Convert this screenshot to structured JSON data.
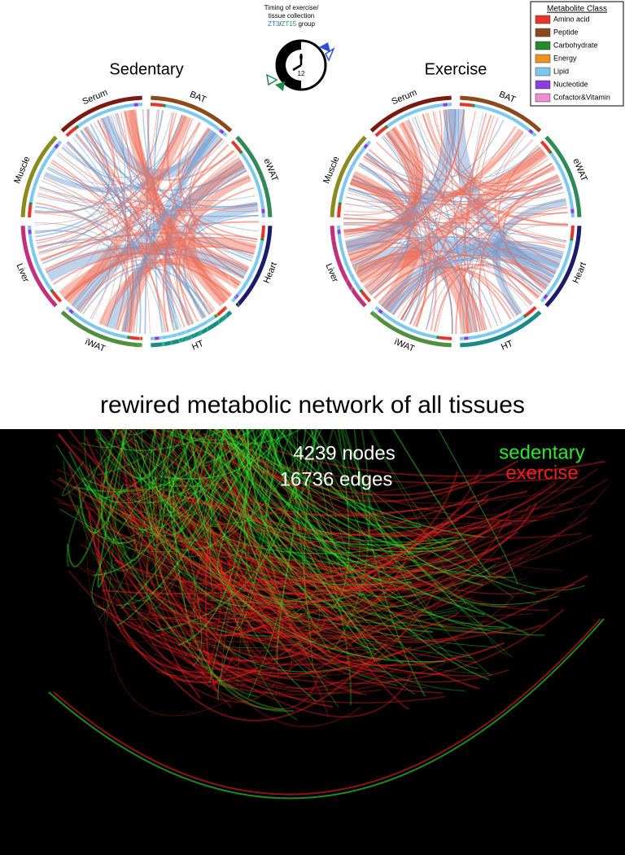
{
  "timing": {
    "line1": "Timing of exercise/",
    "line2": "tissue collection",
    "zt3": "ZT3",
    "sep": "/",
    "zt15": "ZT15",
    "group": "group",
    "clock_top": "0",
    "clock_bottom": "12"
  },
  "panels": [
    {
      "title": "Sedentary",
      "tissues": [
        {
          "label": "Serum",
          "color": "#7a1a14"
        },
        {
          "label": "BAT",
          "color": "#8b4a1c"
        },
        {
          "label": "eWAT",
          "color": "#2e8b57"
        },
        {
          "label": "Heart",
          "color": "#1c1c6a"
        },
        {
          "label": "HT",
          "color": "#1a8a88"
        },
        {
          "label": "iWAT",
          "color": "#4f8f3f"
        },
        {
          "label": "Liver",
          "color": "#c2307c"
        },
        {
          "label": "Muscle",
          "color": "#8a8a1e"
        }
      ]
    },
    {
      "title": "Exercise",
      "tissues": [
        {
          "label": "Serum",
          "color": "#7a1a14"
        },
        {
          "label": "BAT",
          "color": "#8b4a1c"
        },
        {
          "label": "eWAT",
          "color": "#2e8b57"
        },
        {
          "label": "Heart",
          "color": "#1c1c6a"
        },
        {
          "label": "HT",
          "color": "#1a8a88"
        },
        {
          "label": "iWAT",
          "color": "#4f8f3f"
        },
        {
          "label": "Liver",
          "color": "#c2307c"
        },
        {
          "label": "Muscle",
          "color": "#8a8a1e"
        }
      ]
    }
  ],
  "legend": {
    "title": "Metabolite Class",
    "items": [
      {
        "label": "Amino acid",
        "color": "#e8332a"
      },
      {
        "label": "Peptide",
        "color": "#8b4a1c"
      },
      {
        "label": "Carbohydrate",
        "color": "#23882e"
      },
      {
        "label": "Energy",
        "color": "#f0921e"
      },
      {
        "label": "Lipid",
        "color": "#7cc8ee"
      },
      {
        "label": "Nucleotide",
        "color": "#8a3ee0"
      },
      {
        "label": "Cofactor&Vitamin",
        "color": "#ee8cd0"
      }
    ]
  },
  "heading": "rewired metabolic network of all tissues",
  "network": {
    "nodes": "4239 nodes",
    "edges": "16736 edges",
    "legend": [
      {
        "label": "sedentary",
        "color": "#2ee82e"
      },
      {
        "label": "exercise",
        "color": "#e82020"
      }
    ]
  }
}
